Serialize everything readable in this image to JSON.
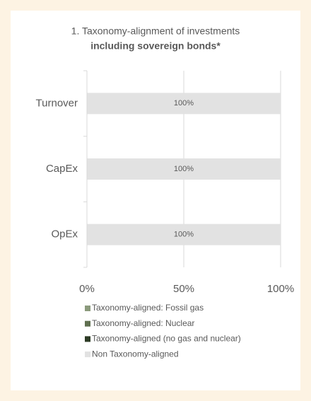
{
  "chart_data": {
    "type": "stacked_barh",
    "title": "1. Taxonomy-alignment of investments",
    "subtitle": "including sovereign bonds*",
    "categories": [
      "Turnover",
      "CapEx",
      "OpEx"
    ],
    "series": [
      {
        "name": "Taxonomy-aligned: Fossil gas",
        "color": "#8b9a7c",
        "values": [
          0,
          0,
          0
        ]
      },
      {
        "name": "Taxonomy-aligned: Nuclear",
        "color": "#5f6f4f",
        "values": [
          0,
          0,
          0
        ]
      },
      {
        "name": "Taxonomy-aligned (no gas and nuclear)",
        "color": "#2d3b25",
        "values": [
          0,
          0,
          0
        ]
      },
      {
        "name": "Non Taxonomy-aligned",
        "color": "#e2e2e2",
        "values": [
          100,
          100,
          100
        ],
        "value_labels": [
          "100%",
          "100%",
          "100%"
        ]
      }
    ],
    "xlim": [
      0,
      100
    ],
    "xticks": [
      {
        "value": 0,
        "label": "0%"
      },
      {
        "value": 50,
        "label": "50%"
      },
      {
        "value": 100,
        "label": "100%"
      }
    ],
    "grid": true
  }
}
